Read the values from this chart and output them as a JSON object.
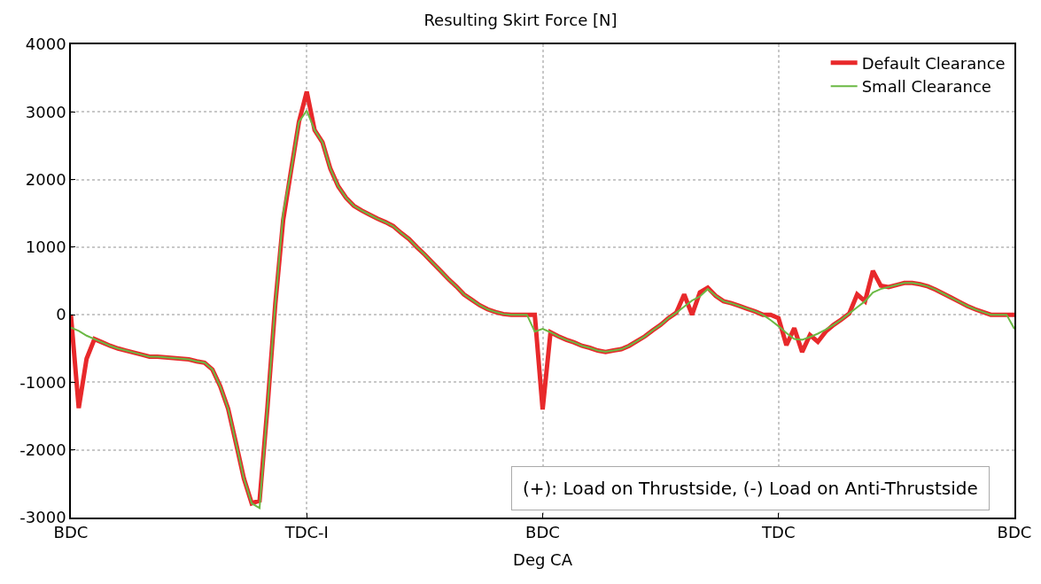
{
  "chart_data": {
    "type": "line",
    "title": "Resulting Skirt Force [N]",
    "xlabel": "Deg CA",
    "categories": [
      "BDC",
      null,
      null,
      null,
      null,
      null,
      null,
      null,
      null,
      null,
      null,
      null,
      null,
      null,
      null,
      null,
      null,
      null,
      null,
      null,
      null,
      null,
      null,
      null,
      null,
      null,
      null,
      null,
      null,
      null,
      "TDC-I",
      null,
      null,
      null,
      null,
      null,
      null,
      null,
      null,
      null,
      null,
      null,
      null,
      null,
      null,
      null,
      null,
      null,
      null,
      null,
      null,
      null,
      null,
      null,
      null,
      null,
      null,
      null,
      null,
      null,
      "BDC",
      null,
      null,
      null,
      null,
      null,
      null,
      null,
      null,
      null,
      null,
      null,
      null,
      null,
      null,
      null,
      null,
      null,
      null,
      null,
      null,
      null,
      null,
      null,
      null,
      null,
      null,
      null,
      null,
      null,
      "TDC",
      null,
      null,
      null,
      null,
      null,
      null,
      null,
      null,
      null,
      null,
      null,
      null,
      null,
      null,
      null,
      null,
      null,
      null,
      null,
      null,
      null,
      null,
      null,
      null,
      null,
      null,
      null,
      null,
      null,
      "BDC"
    ],
    "ylim": [
      -3000,
      4000
    ],
    "yticks": [
      -3000,
      -2000,
      -1000,
      0,
      1000,
      2000,
      3000,
      4000
    ],
    "grid": true,
    "legend": "top right",
    "marker": "none",
    "line_style": "solid",
    "annotations": [
      "(+): Load on Thrustside, (-) Load on Anti-Thrustside"
    ],
    "series": [
      {
        "name": "Default Clearance",
        "color": "#e8292b",
        "values": [
          0,
          -1380,
          -650,
          -360,
          -410,
          -460,
          -500,
          -530,
          -560,
          -590,
          -620,
          -620,
          -630,
          -640,
          -650,
          -660,
          -690,
          -710,
          -810,
          -1060,
          -1390,
          -1900,
          -2420,
          -2790,
          -2750,
          -1370,
          160,
          1400,
          2130,
          2850,
          3300,
          2730,
          2550,
          2160,
          1900,
          1730,
          1610,
          1540,
          1480,
          1420,
          1370,
          1310,
          1210,
          1120,
          1000,
          890,
          770,
          650,
          530,
          420,
          300,
          220,
          140,
          80,
          40,
          10,
          0,
          0,
          0,
          0,
          -1400,
          -260,
          -320,
          -370,
          -410,
          -460,
          -490,
          -530,
          -550,
          -530,
          -510,
          -460,
          -390,
          -320,
          -230,
          -150,
          -50,
          30,
          300,
          0,
          330,
          400,
          280,
          200,
          170,
          130,
          90,
          50,
          0,
          0,
          -50,
          -450,
          -200,
          -550,
          -300,
          -400,
          -250,
          -150,
          -70,
          20,
          300,
          200,
          650,
          430,
          410,
          440,
          470,
          470,
          450,
          420,
          370,
          310,
          250,
          190,
          130,
          80,
          40,
          0,
          0,
          0,
          0
        ]
      },
      {
        "name": "Small Clearance",
        "color": "#6ab943",
        "values": [
          -190,
          -240,
          -310,
          -360,
          -410,
          -460,
          -500,
          -530,
          -560,
          -590,
          -620,
          -620,
          -630,
          -640,
          -650,
          -660,
          -690,
          -710,
          -810,
          -1060,
          -1390,
          -1900,
          -2420,
          -2790,
          -2860,
          -1370,
          160,
          1500,
          2130,
          2850,
          3020,
          2730,
          2550,
          2160,
          1900,
          1730,
          1610,
          1540,
          1480,
          1420,
          1370,
          1310,
          1210,
          1120,
          1000,
          890,
          770,
          650,
          530,
          420,
          300,
          220,
          140,
          80,
          40,
          10,
          0,
          0,
          0,
          -250,
          -210,
          -260,
          -320,
          -370,
          -410,
          -460,
          -490,
          -530,
          -550,
          -530,
          -510,
          -460,
          -390,
          -320,
          -230,
          -150,
          -50,
          30,
          120,
          210,
          270,
          380,
          280,
          200,
          170,
          130,
          90,
          50,
          0,
          -80,
          -170,
          -270,
          -360,
          -370,
          -330,
          -280,
          -220,
          -150,
          -70,
          20,
          110,
          200,
          330,
          380,
          410,
          440,
          470,
          470,
          450,
          420,
          370,
          310,
          250,
          190,
          130,
          80,
          40,
          0,
          0,
          0,
          -210
        ]
      }
    ]
  }
}
